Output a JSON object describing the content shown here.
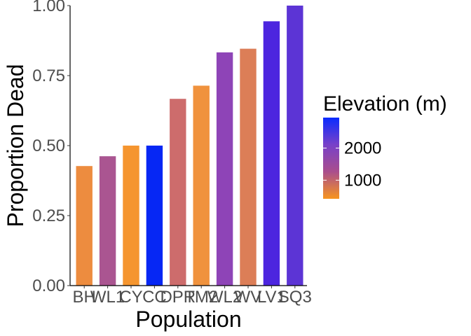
{
  "chart_data": {
    "type": "bar",
    "xlabel": "Population",
    "ylabel": "Proportion Dead",
    "ylim": [
      0,
      1
    ],
    "yticks": [
      "0.00",
      "0.25",
      "0.50",
      "0.75",
      "1.00"
    ],
    "categories": [
      "BH",
      "WL1",
      "CY",
      "CC",
      "DPR",
      "TM2",
      "WL2",
      "WV",
      "LV1",
      "SQ3"
    ],
    "values": [
      0.427,
      0.462,
      0.5,
      0.5,
      0.667,
      0.714,
      0.833,
      0.846,
      0.944,
      1.0
    ],
    "bar_colors": [
      "#ED8C3F",
      "#AA5591",
      "#F5952F",
      "#0627F4",
      "#CD6C6C",
      "#F0923D",
      "#8E44B7",
      "#DC7E57",
      "#4C25DF",
      "#5C34D5"
    ],
    "legend": {
      "title": "Elevation (m)",
      "ticks": [
        "1000",
        "2000"
      ],
      "gradient": [
        "#F7951F",
        "#AA4E8C",
        "#7841C9",
        "#0A2BFF"
      ]
    },
    "grid": false
  }
}
